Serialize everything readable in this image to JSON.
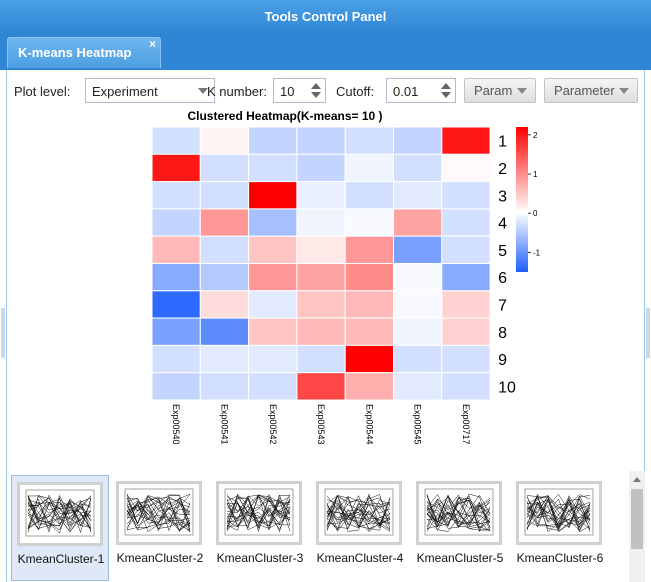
{
  "window": {
    "title": "Tools Control Panel"
  },
  "tabs": [
    {
      "label": "K-means Heatmap",
      "close": "×"
    }
  ],
  "toolbar": {
    "plot_level_label": "Plot level:",
    "plot_level_value": "Experiment",
    "k_number_label": "K number:",
    "k_number_value": "10",
    "cutoff_label": "Cutoff:",
    "cutoff_value": "0.01",
    "param_button": "Param",
    "parameter_button": "Parameter"
  },
  "colors": {
    "high": "#ff0000",
    "mid": "#ffffff",
    "low": "#1f5fff",
    "accent": "#2f86d4"
  },
  "chart_data": {
    "type": "heatmap",
    "title": "Clustered Heatmap(K-means= 10 )",
    "columns": [
      "Exp00540",
      "Exp00541",
      "Exp00542",
      "Exp00543",
      "Exp00544",
      "Exp00545",
      "Exp00717"
    ],
    "rows": [
      "1",
      "2",
      "3",
      "4",
      "5",
      "6",
      "7",
      "8",
      "9",
      "10"
    ],
    "values": [
      [
        -0.3,
        0.1,
        -0.4,
        -0.4,
        -0.3,
        -0.4,
        2.0
      ],
      [
        2.0,
        -0.3,
        -0.3,
        -0.4,
        -0.1,
        -0.3,
        0.05
      ],
      [
        -0.3,
        -0.3,
        2.2,
        -0.15,
        -0.3,
        -0.2,
        -0.3
      ],
      [
        -0.4,
        0.9,
        -0.6,
        -0.1,
        -0.05,
        0.8,
        -0.3
      ],
      [
        0.6,
        -0.3,
        0.5,
        0.2,
        0.9,
        -0.9,
        -0.3
      ],
      [
        -0.8,
        -0.5,
        0.9,
        0.8,
        1.0,
        -0.05,
        -0.8
      ],
      [
        -1.4,
        0.3,
        -0.2,
        0.5,
        0.6,
        -0.05,
        0.4
      ],
      [
        -0.9,
        -1.1,
        0.5,
        0.6,
        0.6,
        -0.1,
        0.4
      ],
      [
        -0.3,
        -0.2,
        -0.2,
        -0.3,
        2.2,
        -0.3,
        -0.3
      ],
      [
        -0.4,
        -0.3,
        -0.3,
        1.6,
        0.7,
        -0.2,
        -0.3
      ]
    ],
    "color_scale": {
      "min": -1.5,
      "max": 2.2,
      "ticks": [
        "2",
        "1",
        "0",
        "-1"
      ]
    }
  },
  "clusters": [
    {
      "label": "KmeanCluster-1",
      "selected": true
    },
    {
      "label": "KmeanCluster-2",
      "selected": false
    },
    {
      "label": "KmeanCluster-3",
      "selected": false
    },
    {
      "label": "KmeanCluster-4",
      "selected": false
    },
    {
      "label": "KmeanCluster-5",
      "selected": false
    },
    {
      "label": "KmeanCluster-6",
      "selected": false
    }
  ]
}
